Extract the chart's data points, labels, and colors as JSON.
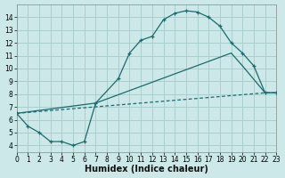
{
  "xlabel": "Humidex (Indice chaleur)",
  "bg_color": "#cce8e8",
  "grid_color": "#aacece",
  "line_color": "#1a6b6b",
  "xlim": [
    0,
    23
  ],
  "ylim": [
    3.5,
    15.0
  ],
  "xticks": [
    0,
    1,
    2,
    3,
    4,
    5,
    6,
    7,
    8,
    9,
    10,
    11,
    12,
    13,
    14,
    15,
    16,
    17,
    18,
    19,
    20,
    21,
    22,
    23
  ],
  "yticks": [
    4,
    5,
    6,
    7,
    8,
    9,
    10,
    11,
    12,
    13,
    14
  ],
  "curve1_x": [
    0,
    1,
    2,
    3,
    4,
    5,
    6,
    7,
    9,
    10,
    11,
    12,
    13,
    14,
    15,
    16,
    17,
    18,
    19,
    20,
    21,
    22,
    23
  ],
  "curve1_y": [
    6.5,
    5.5,
    5.0,
    4.3,
    4.3,
    4.0,
    4.3,
    7.3,
    9.2,
    11.2,
    12.2,
    12.5,
    13.8,
    14.3,
    14.5,
    14.4,
    14.0,
    13.3,
    12.0,
    11.2,
    10.2,
    8.1,
    8.1
  ],
  "curve2_x": [
    0,
    7,
    19,
    20,
    22,
    23
  ],
  "curve2_y": [
    6.5,
    7.3,
    11.2,
    10.2,
    8.1,
    8.1
  ],
  "curve3_x": [
    0,
    22,
    23
  ],
  "curve3_y": [
    6.5,
    8.1,
    8.1
  ]
}
